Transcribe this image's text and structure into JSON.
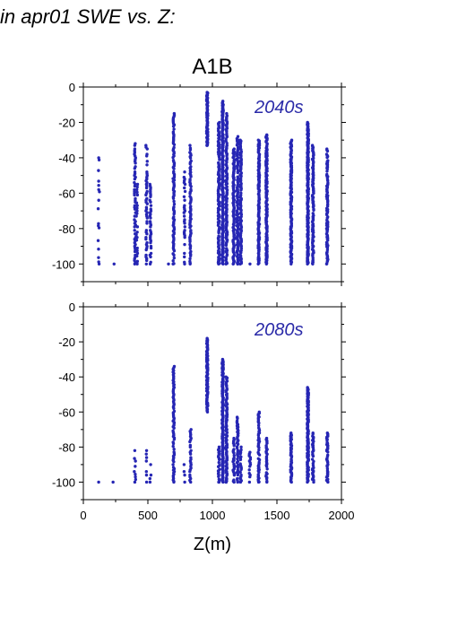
{
  "page": {
    "title": "in apr01 SWE vs. Z:"
  },
  "colors": {
    "points": "#2626b4",
    "annotation": "#2a2aa8"
  },
  "chart_data": [
    {
      "type": "scatter",
      "title": "A1B",
      "annotation": "2040s",
      "xlabel": "",
      "ylabel": "",
      "xlim": [
        0,
        2000
      ],
      "ylim": [
        -110,
        0
      ],
      "xticks": [
        0,
        500,
        1000,
        1500,
        2000
      ],
      "yticks": [
        0,
        -20,
        -40,
        -60,
        -80,
        -100
      ],
      "ytick_labels": [
        "0",
        "-20",
        "-40",
        "-60",
        "-80",
        "-100"
      ],
      "show_xtick_labels": false,
      "columns": [
        {
          "x": 120,
          "top": -40,
          "bottom": -100,
          "step": 1.2,
          "density": 0.35
        },
        {
          "x": 235,
          "top": -100,
          "bottom": -100,
          "step": 3,
          "density": 1
        },
        {
          "x": 400,
          "top": -32,
          "bottom": -100,
          "step": 1,
          "density": 0.8
        },
        {
          "x": 415,
          "top": -55,
          "bottom": -100,
          "step": 1.5,
          "density": 0.6
        },
        {
          "x": 490,
          "top": -33,
          "bottom": -100,
          "step": 1,
          "density": 0.7
        },
        {
          "x": 520,
          "top": -55,
          "bottom": -100,
          "step": 1,
          "density": 0.7
        },
        {
          "x": 660,
          "top": -100,
          "bottom": -100,
          "step": 3,
          "density": 1
        },
        {
          "x": 700,
          "top": -15,
          "bottom": -100,
          "step": 0.8,
          "density": 0.85
        },
        {
          "x": 785,
          "top": -48,
          "bottom": -100,
          "step": 1,
          "density": 0.7
        },
        {
          "x": 830,
          "top": -33,
          "bottom": -100,
          "step": 0.8,
          "density": 0.8
        },
        {
          "x": 960,
          "top": -3,
          "bottom": -33,
          "step": 0.4,
          "density": 1
        },
        {
          "x": 1050,
          "top": -20,
          "bottom": -100,
          "step": 0.6,
          "density": 0.9
        },
        {
          "x": 1080,
          "top": -8,
          "bottom": -100,
          "step": 0.5,
          "density": 1
        },
        {
          "x": 1110,
          "top": -15,
          "bottom": -100,
          "step": 0.6,
          "density": 0.9
        },
        {
          "x": 1165,
          "top": -35,
          "bottom": -100,
          "step": 0.6,
          "density": 0.9
        },
        {
          "x": 1195,
          "top": -28,
          "bottom": -100,
          "step": 0.6,
          "density": 0.9
        },
        {
          "x": 1220,
          "top": -30,
          "bottom": -100,
          "step": 0.6,
          "density": 0.9
        },
        {
          "x": 1290,
          "top": -100,
          "bottom": -100,
          "step": 3,
          "density": 1
        },
        {
          "x": 1360,
          "top": -30,
          "bottom": -100,
          "step": 0.5,
          "density": 0.95
        },
        {
          "x": 1420,
          "top": -27,
          "bottom": -100,
          "step": 0.5,
          "density": 0.95
        },
        {
          "x": 1610,
          "top": -30,
          "bottom": -100,
          "step": 0.5,
          "density": 0.95
        },
        {
          "x": 1740,
          "top": -20,
          "bottom": -100,
          "step": 0.4,
          "density": 1
        },
        {
          "x": 1780,
          "top": -33,
          "bottom": -100,
          "step": 0.6,
          "density": 0.9
        },
        {
          "x": 1890,
          "top": -35,
          "bottom": -100,
          "step": 0.6,
          "density": 0.85
        }
      ]
    },
    {
      "type": "scatter",
      "title": "",
      "annotation": "2080s",
      "xlabel": "Z(m)",
      "ylabel": "",
      "xlim": [
        0,
        2000
      ],
      "ylim": [
        -110,
        0
      ],
      "xticks": [
        0,
        500,
        1000,
        1500,
        2000
      ],
      "xtick_labels": [
        "0",
        "500",
        "1000",
        "1500",
        "2000"
      ],
      "yticks": [
        0,
        -20,
        -40,
        -60,
        -80,
        -100
      ],
      "ytick_labels": [
        "0",
        "-20",
        "-40",
        "-60",
        "-80",
        "-100"
      ],
      "show_xtick_labels": true,
      "columns": [
        {
          "x": 120,
          "top": -100,
          "bottom": -100,
          "step": 3,
          "density": 1
        },
        {
          "x": 235,
          "top": -100,
          "bottom": -100,
          "step": 3,
          "density": 1
        },
        {
          "x": 400,
          "top": -82,
          "bottom": -100,
          "step": 1.5,
          "density": 0.6
        },
        {
          "x": 490,
          "top": -82,
          "bottom": -100,
          "step": 2,
          "density": 0.5
        },
        {
          "x": 520,
          "top": -90,
          "bottom": -100,
          "step": 2,
          "density": 0.6
        },
        {
          "x": 700,
          "top": -34,
          "bottom": -100,
          "step": 0.8,
          "density": 0.85
        },
        {
          "x": 785,
          "top": -90,
          "bottom": -100,
          "step": 2,
          "density": 0.7
        },
        {
          "x": 830,
          "top": -70,
          "bottom": -100,
          "step": 1,
          "density": 0.8
        },
        {
          "x": 960,
          "top": -18,
          "bottom": -60,
          "step": 0.5,
          "density": 1
        },
        {
          "x": 1050,
          "top": -80,
          "bottom": -100,
          "step": 0.8,
          "density": 0.8
        },
        {
          "x": 1080,
          "top": -30,
          "bottom": -100,
          "step": 0.5,
          "density": 1
        },
        {
          "x": 1110,
          "top": -40,
          "bottom": -100,
          "step": 0.6,
          "density": 0.9
        },
        {
          "x": 1165,
          "top": -75,
          "bottom": -100,
          "step": 0.7,
          "density": 0.8
        },
        {
          "x": 1195,
          "top": -63,
          "bottom": -100,
          "step": 0.7,
          "density": 0.8
        },
        {
          "x": 1220,
          "top": -80,
          "bottom": -100,
          "step": 0.8,
          "density": 0.8
        },
        {
          "x": 1290,
          "top": -83,
          "bottom": -100,
          "step": 1,
          "density": 0.8
        },
        {
          "x": 1360,
          "top": -60,
          "bottom": -100,
          "step": 0.7,
          "density": 0.8
        },
        {
          "x": 1420,
          "top": -75,
          "bottom": -100,
          "step": 0.7,
          "density": 0.85
        },
        {
          "x": 1610,
          "top": -72,
          "bottom": -100,
          "step": 0.6,
          "density": 0.9
        },
        {
          "x": 1740,
          "top": -46,
          "bottom": -100,
          "step": 0.4,
          "density": 1
        },
        {
          "x": 1780,
          "top": -72,
          "bottom": -100,
          "step": 0.6,
          "density": 0.85
        },
        {
          "x": 1890,
          "top": -72,
          "bottom": -100,
          "step": 0.6,
          "density": 0.85
        }
      ]
    }
  ]
}
